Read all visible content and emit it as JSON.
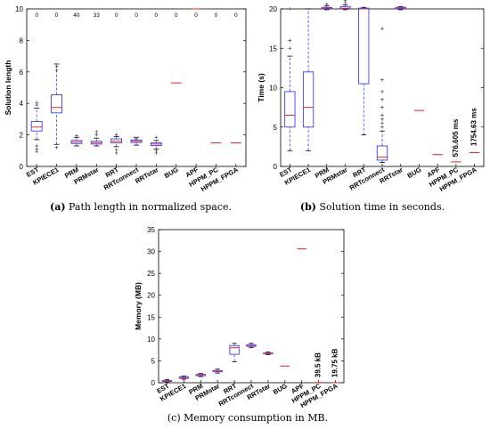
{
  "chart_data": [
    {
      "id": "a",
      "type": "box",
      "ylabel": "Solution length",
      "ylim": [
        0,
        10
      ],
      "yticks": [
        0,
        2,
        4,
        6,
        8,
        10
      ],
      "grid": false,
      "categories": [
        "EST",
        "KPIECE1",
        "PRM",
        "PRMstar",
        "RRT",
        "RRTconnect",
        "RRTstar",
        "BUG",
        "APF",
        "HPPM_PC",
        "HPPM_FPGA"
      ],
      "top_counts": [
        "0",
        "0",
        "40",
        "33",
        "0",
        "0",
        "0",
        "0",
        "0",
        "0",
        "0"
      ],
      "boxes": [
        {
          "min": 1.7,
          "q1": 2.25,
          "median": 2.5,
          "q3": 2.85,
          "max": 3.7,
          "outliers": [
            1.3,
            1.1,
            0.95,
            3.9,
            4.05
          ]
        },
        {
          "min": 1.4,
          "q1": 3.4,
          "median": 3.75,
          "q3": 4.55,
          "max": 6.5,
          "outliers": [
            1.2,
            6.1,
            6.35
          ]
        },
        {
          "min": 1.3,
          "q1": 1.45,
          "median": 1.55,
          "q3": 1.65,
          "max": 1.85,
          "outliers": [
            1.95
          ]
        },
        {
          "min": 1.3,
          "q1": 1.42,
          "median": 1.5,
          "q3": 1.6,
          "max": 1.8,
          "outliers": [
            2.0,
            2.2
          ]
        },
        {
          "min": 1.25,
          "q1": 1.5,
          "median": 1.6,
          "q3": 1.75,
          "max": 1.9,
          "outliers": [
            1.05,
            0.85,
            2.0
          ]
        },
        {
          "min": 1.35,
          "q1": 1.52,
          "median": 1.6,
          "q3": 1.68,
          "max": 1.85,
          "outliers": [
            1.75
          ]
        },
        {
          "min": 1.1,
          "q1": 1.33,
          "median": 1.42,
          "q3": 1.5,
          "max": 1.65,
          "outliers": [
            0.85,
            1.0,
            1.85
          ]
        },
        {
          "median": 5.3
        },
        {
          "median": 10.0
        },
        {
          "median": 1.5
        },
        {
          "median": 1.5
        }
      ],
      "annotations": [],
      "caption_label": "(a)",
      "caption_text": " Path length in normalized space."
    },
    {
      "id": "b",
      "type": "box",
      "ylabel": "Time (s)",
      "ylim": [
        0,
        20
      ],
      "yticks": [
        0,
        5,
        10,
        15,
        20
      ],
      "grid": false,
      "categories": [
        "EST",
        "KPIECE1",
        "PRM",
        "PRMstar",
        "RRT",
        "RRTconnect",
        "RRTstar",
        "BUG",
        "APF",
        "HPPM_PC",
        "HPPM_FPGA"
      ],
      "top_counts": [],
      "boxes": [
        {
          "min": 2.0,
          "q1": 5.0,
          "median": 6.5,
          "q3": 9.5,
          "max": 14.0,
          "outliers": [
            15.0,
            16.0,
            20.0
          ]
        },
        {
          "min": 2.0,
          "q1": 5.0,
          "median": 7.5,
          "q3": 12.0,
          "max": 20.0,
          "outliers": []
        },
        {
          "min": 19.9,
          "q1": 20.0,
          "median": 20.1,
          "q3": 20.2,
          "max": 20.4,
          "outliers": [
            20.6
          ]
        },
        {
          "min": 19.9,
          "q1": 20.0,
          "median": 20.1,
          "q3": 20.3,
          "max": 20.5,
          "outliers": [
            20.8,
            21.1
          ]
        },
        {
          "min": 4.0,
          "q1": 10.5,
          "median": 20.0,
          "q3": 20.1,
          "max": 20.2,
          "outliers": []
        },
        {
          "min": 0.5,
          "q1": 0.8,
          "median": 1.2,
          "q3": 2.6,
          "max": 4.5,
          "outliers": [
            5.0,
            5.5,
            6.0,
            6.5,
            7.5,
            8.5,
            9.5,
            11.0,
            17.5
          ]
        },
        {
          "min": 19.9,
          "q1": 20.0,
          "median": 20.1,
          "q3": 20.2,
          "max": 20.3,
          "outliers": []
        },
        {
          "median": 7.1
        },
        {
          "median": 1.5
        },
        {
          "median": 0.577
        },
        {
          "median": 1.755
        }
      ],
      "annotations": [
        {
          "category_index": 9,
          "text": "576.605 ms",
          "y": 1.2
        },
        {
          "category_index": 10,
          "text": "1754.63 ms",
          "y": 2.6
        }
      ],
      "caption_label": "(b)",
      "caption_text": " Solution time in seconds."
    },
    {
      "id": "c",
      "type": "box",
      "ylabel": "Memory (MB)",
      "ylim": [
        0,
        35
      ],
      "yticks": [
        0,
        5,
        10,
        15,
        20,
        25,
        30,
        35
      ],
      "grid": false,
      "categories": [
        "EST",
        "KPIECE1",
        "PRM",
        "PRMstar",
        "RRT",
        "RRTconnect",
        "RRTstar",
        "BUG",
        "APF",
        "HPPM_PC",
        "HPPM_FPGA"
      ],
      "top_counts": [],
      "boxes": [
        {
          "min": 0.2,
          "q1": 0.3,
          "median": 0.4,
          "q3": 0.5,
          "max": 0.7,
          "outliers": []
        },
        {
          "min": 0.8,
          "q1": 1.0,
          "median": 1.1,
          "q3": 1.3,
          "max": 1.5,
          "outliers": []
        },
        {
          "min": 1.4,
          "q1": 1.6,
          "median": 1.7,
          "q3": 1.9,
          "max": 2.1,
          "outliers": []
        },
        {
          "min": 2.2,
          "q1": 2.5,
          "median": 2.6,
          "q3": 2.8,
          "max": 3.1,
          "outliers": []
        },
        {
          "min": 4.8,
          "q1": 6.5,
          "median": 8.0,
          "q3": 8.5,
          "max": 9.0,
          "outliers": []
        },
        {
          "min": 8.0,
          "q1": 8.3,
          "median": 8.5,
          "q3": 8.7,
          "max": 9.0,
          "outliers": []
        },
        {
          "min": 6.4,
          "q1": 6.6,
          "median": 6.7,
          "q3": 6.8,
          "max": 7.0,
          "outliers": []
        },
        {
          "median": 3.8
        },
        {
          "median": 30.6
        },
        {
          "median": 0.04
        },
        {
          "median": 0.02
        }
      ],
      "annotations": [
        {
          "category_index": 9,
          "text": "39.5 kB",
          "y": 1.2
        },
        {
          "category_index": 10,
          "text": "19.75 kB",
          "y": 1.2
        }
      ],
      "caption_label": "(c)",
      "caption_text": " Memory consumption in MB."
    }
  ],
  "colors": {
    "box": "#3b3bff",
    "median": "#e8302a",
    "outlier": "#444444",
    "axis": "#000000"
  }
}
